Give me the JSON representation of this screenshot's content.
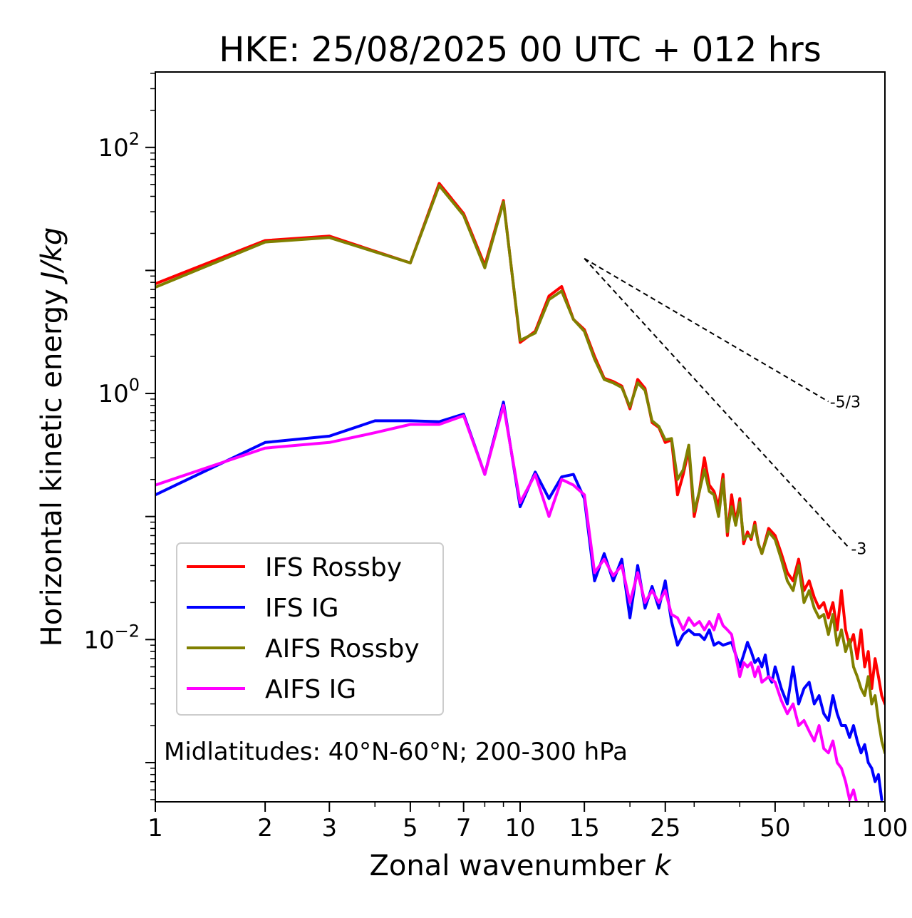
{
  "chart_data": {
    "type": "line",
    "title": "HKE: 25/08/2025 00 UTC + 012 hrs",
    "xlabel_main": "Zonal wavenumber ",
    "xlabel_var": "k",
    "ylabel_main": "Horizontal kinetic energy ",
    "ylabel_unit": "J/kg",
    "xscale": "log",
    "yscale": "log",
    "xlim": [
      1,
      100
    ],
    "ylim": [
      0.00048,
      410
    ],
    "x_ticks": [
      1,
      2,
      3,
      5,
      7,
      10,
      15,
      25,
      50,
      100
    ],
    "x_tick_labels": [
      "1",
      "2",
      "3",
      "5",
      "7",
      "10",
      "15",
      "25",
      "50",
      "100"
    ],
    "y_ticks": [
      {
        "value": 100,
        "base": "10",
        "exp": "2"
      },
      {
        "value": 1,
        "base": "10",
        "exp": "0"
      },
      {
        "value": 0.01,
        "base": "10",
        "exp": "−2"
      }
    ],
    "annotation": "Midlatitudes: 40°N-60°N; 200-300 hPa",
    "legend_position": "lower-left",
    "reference_lines": [
      {
        "label": "-5/3",
        "x0": 15,
        "y0": 12.5,
        "x1": 70,
        "y1": 0.86
      },
      {
        "label": "-3",
        "x0": 15,
        "y0": 12.5,
        "x1": 80,
        "y1": 0.055
      }
    ],
    "series": [
      {
        "name": "IFS Rossby",
        "color": "#ff0000",
        "points": [
          [
            1,
            7.8
          ],
          [
            2,
            17.5
          ],
          [
            3,
            19
          ],
          [
            5,
            11.5
          ],
          [
            6,
            51
          ],
          [
            7,
            29
          ],
          [
            8,
            11
          ],
          [
            9,
            37
          ],
          [
            10,
            2.6
          ],
          [
            11,
            3.2
          ],
          [
            12,
            6.2
          ],
          [
            13,
            7.4
          ],
          [
            14,
            4
          ],
          [
            15,
            3.3
          ],
          [
            16,
            2
          ],
          [
            17,
            1.33
          ],
          [
            18,
            1.25
          ],
          [
            19,
            1.15
          ],
          [
            20,
            0.75
          ],
          [
            21,
            1.3
          ],
          [
            22,
            1.1
          ],
          [
            23,
            0.58
          ],
          [
            24,
            0.53
          ],
          [
            25,
            0.4
          ],
          [
            26,
            0.42
          ],
          [
            27,
            0.15
          ],
          [
            28,
            0.22
          ],
          [
            29,
            0.35
          ],
          [
            30,
            0.1
          ],
          [
            31,
            0.16
          ],
          [
            32,
            0.3
          ],
          [
            33,
            0.18
          ],
          [
            34,
            0.16
          ],
          [
            35,
            0.12
          ],
          [
            36,
            0.22
          ],
          [
            37,
            0.07
          ],
          [
            38,
            0.15
          ],
          [
            39,
            0.09
          ],
          [
            40,
            0.14
          ],
          [
            41,
            0.06
          ],
          [
            42,
            0.075
          ],
          [
            43,
            0.065
          ],
          [
            44,
            0.09
          ],
          [
            45,
            0.06
          ],
          [
            46,
            0.05
          ],
          [
            48,
            0.08
          ],
          [
            50,
            0.07
          ],
          [
            52,
            0.05
          ],
          [
            54,
            0.035
          ],
          [
            56,
            0.03
          ],
          [
            58,
            0.045
          ],
          [
            60,
            0.025
          ],
          [
            62,
            0.03
          ],
          [
            64,
            0.022
          ],
          [
            66,
            0.018
          ],
          [
            68,
            0.02
          ],
          [
            70,
            0.015
          ],
          [
            72,
            0.02
          ],
          [
            74,
            0.012
          ],
          [
            76,
            0.025
          ],
          [
            78,
            0.012
          ],
          [
            80,
            0.009
          ],
          [
            82,
            0.011
          ],
          [
            84,
            0.007
          ],
          [
            86,
            0.012
          ],
          [
            88,
            0.006
          ],
          [
            90,
            0.008
          ],
          [
            92,
            0.004
          ],
          [
            94,
            0.007
          ],
          [
            96,
            0.005
          ],
          [
            98,
            0.0035
          ],
          [
            100,
            0.003
          ]
        ]
      },
      {
        "name": "IFS IG",
        "color": "#0000ff",
        "points": [
          [
            1,
            0.15
          ],
          [
            2,
            0.4
          ],
          [
            3,
            0.45
          ],
          [
            4,
            0.6
          ],
          [
            5,
            0.6
          ],
          [
            6,
            0.59
          ],
          [
            7,
            0.68
          ],
          [
            8,
            0.22
          ],
          [
            9,
            0.85
          ],
          [
            10,
            0.12
          ],
          [
            11,
            0.23
          ],
          [
            12,
            0.14
          ],
          [
            13,
            0.21
          ],
          [
            14,
            0.22
          ],
          [
            15,
            0.14
          ],
          [
            16,
            0.03
          ],
          [
            17,
            0.05
          ],
          [
            18,
            0.03
          ],
          [
            19,
            0.045
          ],
          [
            20,
            0.015
          ],
          [
            21,
            0.04
          ],
          [
            22,
            0.018
          ],
          [
            23,
            0.027
          ],
          [
            24,
            0.018
          ],
          [
            25,
            0.03
          ],
          [
            26,
            0.014
          ],
          [
            27,
            0.009
          ],
          [
            28,
            0.011
          ],
          [
            29,
            0.012
          ],
          [
            30,
            0.011
          ],
          [
            31,
            0.011
          ],
          [
            32,
            0.01
          ],
          [
            33,
            0.012
          ],
          [
            34,
            0.009
          ],
          [
            35,
            0.0095
          ],
          [
            36,
            0.009
          ],
          [
            38,
            0.0095
          ],
          [
            40,
            0.006
          ],
          [
            41,
            0.0075
          ],
          [
            42,
            0.0095
          ],
          [
            43,
            0.008
          ],
          [
            44,
            0.0065
          ],
          [
            45,
            0.007
          ],
          [
            46,
            0.006
          ],
          [
            47,
            0.0075
          ],
          [
            48,
            0.005
          ],
          [
            49,
            0.0045
          ],
          [
            50,
            0.006
          ],
          [
            52,
            0.004
          ],
          [
            54,
            0.003
          ],
          [
            56,
            0.006
          ],
          [
            58,
            0.003
          ],
          [
            60,
            0.004
          ],
          [
            62,
            0.0045
          ],
          [
            64,
            0.003
          ],
          [
            66,
            0.0035
          ],
          [
            68,
            0.0025
          ],
          [
            70,
            0.0022
          ],
          [
            72,
            0.0035
          ],
          [
            74,
            0.0025
          ],
          [
            76,
            0.002
          ],
          [
            78,
            0.002
          ],
          [
            80,
            0.0016
          ],
          [
            82,
            0.002
          ],
          [
            84,
            0.0015
          ],
          [
            86,
            0.0012
          ],
          [
            88,
            0.0014
          ],
          [
            90,
            0.001
          ],
          [
            92,
            0.0009
          ],
          [
            94,
            0.0007
          ],
          [
            96,
            0.0008
          ],
          [
            98,
            0.0005
          ]
        ]
      },
      {
        "name": "AIFS Rossby",
        "color": "#808000",
        "points": [
          [
            1,
            7.3
          ],
          [
            2,
            17
          ],
          [
            3,
            18.5
          ],
          [
            5,
            11.5
          ],
          [
            6,
            49
          ],
          [
            7,
            28
          ],
          [
            8,
            10.5
          ],
          [
            9,
            36
          ],
          [
            10,
            2.7
          ],
          [
            11,
            3.1
          ],
          [
            12,
            5.8
          ],
          [
            13,
            6.8
          ],
          [
            14,
            4
          ],
          [
            15,
            3.2
          ],
          [
            16,
            1.9
          ],
          [
            17,
            1.3
          ],
          [
            18,
            1.22
          ],
          [
            19,
            1.12
          ],
          [
            20,
            0.78
          ],
          [
            21,
            1.22
          ],
          [
            22,
            1.06
          ],
          [
            23,
            0.6
          ],
          [
            24,
            0.54
          ],
          [
            25,
            0.42
          ],
          [
            26,
            0.43
          ],
          [
            27,
            0.2
          ],
          [
            28,
            0.24
          ],
          [
            29,
            0.38
          ],
          [
            30,
            0.11
          ],
          [
            31,
            0.16
          ],
          [
            32,
            0.24
          ],
          [
            33,
            0.16
          ],
          [
            34,
            0.15
          ],
          [
            35,
            0.1
          ],
          [
            36,
            0.2
          ],
          [
            37,
            0.075
          ],
          [
            38,
            0.12
          ],
          [
            39,
            0.085
          ],
          [
            40,
            0.13
          ],
          [
            41,
            0.065
          ],
          [
            42,
            0.07
          ],
          [
            43,
            0.068
          ],
          [
            44,
            0.085
          ],
          [
            45,
            0.06
          ],
          [
            46,
            0.05
          ],
          [
            48,
            0.075
          ],
          [
            50,
            0.065
          ],
          [
            52,
            0.045
          ],
          [
            54,
            0.03
          ],
          [
            56,
            0.025
          ],
          [
            58,
            0.04
          ],
          [
            60,
            0.02
          ],
          [
            62,
            0.025
          ],
          [
            64,
            0.018
          ],
          [
            66,
            0.015
          ],
          [
            68,
            0.016
          ],
          [
            70,
            0.011
          ],
          [
            72,
            0.016
          ],
          [
            74,
            0.009
          ],
          [
            76,
            0.012
          ],
          [
            78,
            0.008
          ],
          [
            80,
            0.01
          ],
          [
            82,
            0.006
          ],
          [
            84,
            0.005
          ],
          [
            86,
            0.004
          ],
          [
            88,
            0.0035
          ],
          [
            90,
            0.005
          ],
          [
            92,
            0.003
          ],
          [
            94,
            0.0035
          ],
          [
            96,
            0.0022
          ],
          [
            98,
            0.0015
          ],
          [
            100,
            0.0012
          ]
        ]
      },
      {
        "name": "AIFS IG",
        "color": "#ff00ff",
        "points": [
          [
            1,
            0.18
          ],
          [
            2,
            0.36
          ],
          [
            3,
            0.4
          ],
          [
            4,
            0.48
          ],
          [
            5,
            0.56
          ],
          [
            6,
            0.56
          ],
          [
            7,
            0.66
          ],
          [
            8,
            0.22
          ],
          [
            9,
            0.8
          ],
          [
            10,
            0.13
          ],
          [
            11,
            0.22
          ],
          [
            12,
            0.1
          ],
          [
            13,
            0.2
          ],
          [
            14,
            0.18
          ],
          [
            15,
            0.15
          ],
          [
            16,
            0.035
          ],
          [
            17,
            0.045
          ],
          [
            18,
            0.033
          ],
          [
            19,
            0.04
          ],
          [
            20,
            0.02
          ],
          [
            21,
            0.035
          ],
          [
            22,
            0.02
          ],
          [
            23,
            0.025
          ],
          [
            24,
            0.02
          ],
          [
            25,
            0.025
          ],
          [
            26,
            0.016
          ],
          [
            27,
            0.015
          ],
          [
            28,
            0.012
          ],
          [
            29,
            0.015
          ],
          [
            30,
            0.013
          ],
          [
            31,
            0.014
          ],
          [
            32,
            0.012
          ],
          [
            33,
            0.014
          ],
          [
            34,
            0.012
          ],
          [
            35,
            0.016
          ],
          [
            36,
            0.013
          ],
          [
            37,
            0.012
          ],
          [
            38,
            0.011
          ],
          [
            40,
            0.005
          ],
          [
            41,
            0.0065
          ],
          [
            42,
            0.006
          ],
          [
            43,
            0.0065
          ],
          [
            44,
            0.005
          ],
          [
            45,
            0.006
          ],
          [
            46,
            0.0045
          ],
          [
            48,
            0.005
          ],
          [
            50,
            0.0045
          ],
          [
            52,
            0.0032
          ],
          [
            54,
            0.0025
          ],
          [
            56,
            0.003
          ],
          [
            58,
            0.002
          ],
          [
            60,
            0.0022
          ],
          [
            62,
            0.0018
          ],
          [
            64,
            0.0015
          ],
          [
            66,
            0.002
          ],
          [
            68,
            0.0013
          ],
          [
            70,
            0.0012
          ],
          [
            72,
            0.0015
          ],
          [
            74,
            0.001
          ],
          [
            76,
            0.0009
          ],
          [
            78,
            0.0007
          ],
          [
            80,
            0.0005
          ],
          [
            82,
            0.0006
          ],
          [
            84,
            0.00045
          ]
        ]
      }
    ]
  }
}
